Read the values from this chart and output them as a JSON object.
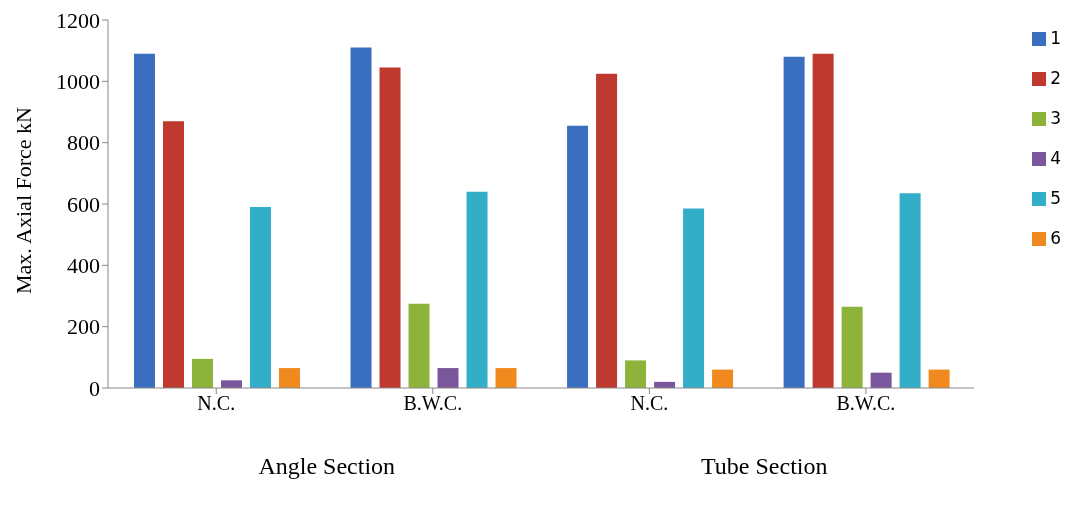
{
  "chart_data": {
    "type": "bar",
    "ylabel": "Max. Axial Force kN",
    "categories": [
      "N.C.",
      "B.W.C.",
      "N.C.",
      "B.W.C."
    ],
    "series": [
      {
        "name": "1",
        "color": "#3a6fbf",
        "values": [
          1090,
          1110,
          855,
          1080
        ]
      },
      {
        "name": "2",
        "color": "#c0392f",
        "values": [
          870,
          1045,
          1025,
          1090
        ]
      },
      {
        "name": "3",
        "color": "#8db33a",
        "values": [
          95,
          275,
          90,
          265
        ]
      },
      {
        "name": "4",
        "color": "#7a569c",
        "values": [
          25,
          65,
          20,
          50
        ]
      },
      {
        "name": "5",
        "color": "#33aec9",
        "values": [
          590,
          640,
          585,
          635
        ]
      },
      {
        "name": "6",
        "color": "#f08a1e",
        "values": [
          65,
          65,
          60,
          60
        ]
      }
    ],
    "ylim": [
      0,
      1200
    ],
    "yticks": [
      0,
      200,
      400,
      600,
      800,
      1000,
      1200
    ],
    "legend": "right",
    "grid": false,
    "annotations": [
      "Angle Section",
      "Tube Section"
    ]
  }
}
